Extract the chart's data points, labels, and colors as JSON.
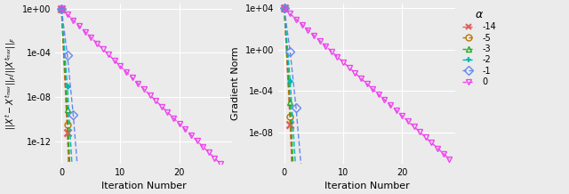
{
  "ylabel1": "||Xᵗ − Xᵗᵐᵃˣ||_F/||Xᵗᵐᵃˣ||_F",
  "ylabel2": "Gradient Norm",
  "xlabel": "Iteration Number",
  "background_color": "#ebebeb",
  "grid_color": "#ffffff",
  "series": [
    {
      "alpha_label": "-14",
      "color": "#e06060",
      "marker": "x",
      "mfc": "none"
    },
    {
      "alpha_label": "-5",
      "color": "#b87800",
      "marker": "o",
      "mfc": "none"
    },
    {
      "alpha_label": "-3",
      "color": "#22aa22",
      "marker": "^",
      "mfc": "none"
    },
    {
      "alpha_label": "-2",
      "color": "#00b8b8",
      "marker": "P",
      "mfc": "none"
    },
    {
      "alpha_label": "-1",
      "color": "#6688ee",
      "marker": "D",
      "mfc": "none"
    },
    {
      "alpha_label": "0",
      "color": "#ee44ee",
      "marker": "v",
      "mfc": "none"
    }
  ],
  "p1_starts": [
    1.0,
    1.0,
    1.0,
    1.0,
    1.0,
    1.0
  ],
  "p2_starts": [
    10000.0,
    10000.0,
    10000.0,
    10000.0,
    10000.0,
    10000.0
  ],
  "plot1_rates": [
    8.0,
    7.5,
    6.5,
    5.0,
    3.0,
    0.52
  ],
  "plot2_rates": [
    8.0,
    7.5,
    6.5,
    5.0,
    3.0,
    0.52
  ],
  "n_pts": [
    6,
    6,
    7,
    8,
    11,
    29
  ],
  "xlim": [
    -1,
    29
  ],
  "p1_ylim": [
    1e-14,
    3.0
  ],
  "p2_ylim": [
    1e-11,
    30000.0
  ],
  "yticks1": [
    1e-12,
    1e-08,
    0.0001,
    1.0
  ],
  "yticks2": [
    1e-08,
    0.0001,
    1.0,
    10000.0
  ],
  "xticks": [
    0,
    10,
    20
  ]
}
